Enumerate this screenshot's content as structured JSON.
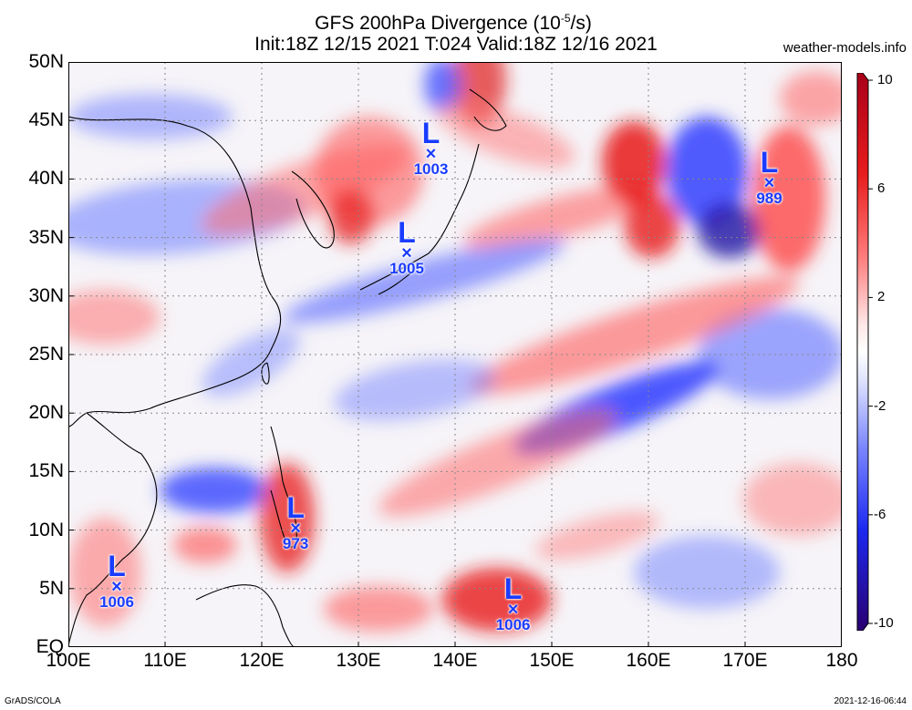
{
  "title_line1": "GFS 200hPa Divergence (10",
  "title_sup": "-5",
  "title_unit_tail": "/s)",
  "title_line2": "Init:18Z 12/15 2021 T:024 Valid:18Z 12/16 2021",
  "credit": "weather-models.info",
  "footer_left": "GrADS/COLA",
  "footer_right": "2021-12-16-06:44",
  "lat_labels": [
    "50N",
    "45N",
    "40N",
    "35N",
    "30N",
    "25N",
    "20N",
    "15N",
    "10N",
    "5N",
    "EQ"
  ],
  "lon_labels": [
    "100E",
    "110E",
    "120E",
    "130E",
    "140E",
    "150E",
    "160E",
    "170E",
    "180"
  ],
  "colorbar_labels": [
    "10",
    "6",
    "2",
    "-2",
    "-6",
    "-10"
  ],
  "colors": {
    "positive_max": "#b3001f",
    "positive": "#ff2020",
    "neutral": "#ffffff",
    "negative": "#2030ff",
    "negative_max": "#2a006f",
    "low_marker": "#1a3cff"
  },
  "lows": [
    {
      "lon": 137.5,
      "lat": 42,
      "pressure": "1003"
    },
    {
      "lon": 135,
      "lat": 33.5,
      "pressure": "1005"
    },
    {
      "lon": 172.5,
      "lat": 39.5,
      "pressure": "989"
    },
    {
      "lon": 123.5,
      "lat": 10,
      "pressure": "973"
    },
    {
      "lon": 105,
      "lat": 5,
      "pressure": "1006"
    },
    {
      "lon": 146,
      "lat": 3,
      "pressure": "1006"
    }
  ],
  "low_letter": "L",
  "low_marker_symbol": "×"
}
